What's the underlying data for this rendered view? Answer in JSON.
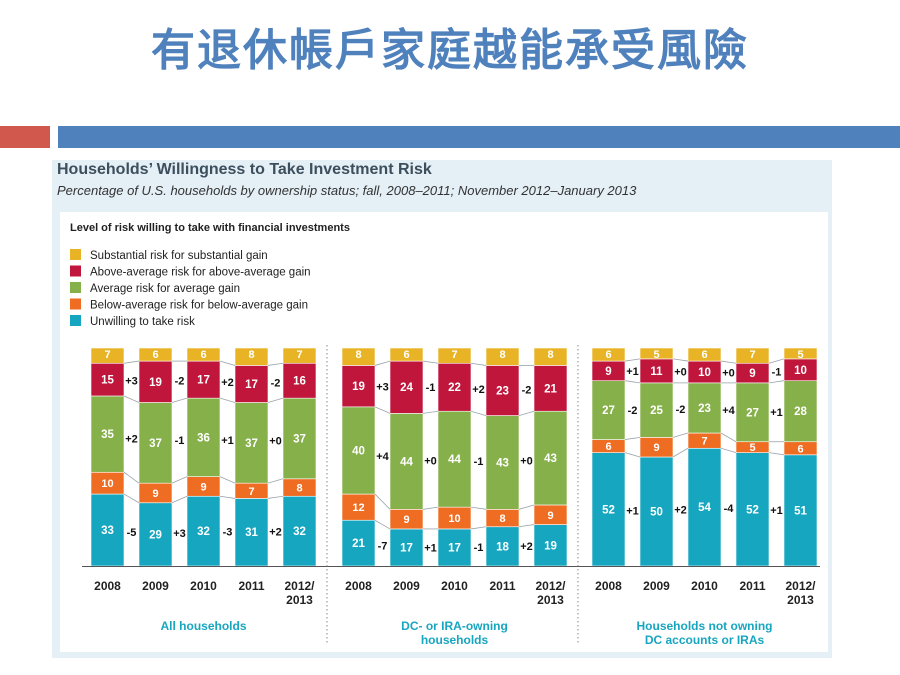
{
  "slide_title": "有退休帳戶家庭越能承受風險",
  "colors": {
    "slide_title": "#4f81bd",
    "accent_red": "#d0584d",
    "accent_blue": "#4f81bd",
    "substantial": "#e8b425",
    "above_average": "#c0163c",
    "average": "#86b04a",
    "below_average": "#ef6d22",
    "unwilling": "#17a6c0"
  },
  "chart_data": {
    "type": "bar",
    "stacked": true,
    "title": "Households’ Willingness to Take Investment Risk",
    "subtitle": "Percentage of U.S. households by ownership status; fall, 2008–2011; November 2012–January 2013",
    "legend_title": "Level of risk willing to take with financial investments",
    "legend": [
      "Substantial risk for substantial gain",
      "Above-average risk for above-average gain",
      "Average risk for average gain",
      "Below-average risk for below-average gain",
      "Unwilling to take risk"
    ],
    "categories": [
      "2008",
      "2009",
      "2010",
      "2011",
      "2012/\n2013"
    ],
    "groups": [
      {
        "name": "All households",
        "series": [
          {
            "values": [
              33,
              29,
              32,
              31,
              32
            ],
            "changes": [
              "-5",
              "+3",
              "-3",
              "+2"
            ]
          },
          {
            "values": [
              10,
              9,
              9,
              7,
              8
            ],
            "changes": []
          },
          {
            "values": [
              35,
              37,
              36,
              37,
              37
            ],
            "changes": [
              "+2",
              "-1",
              "+1",
              "+0"
            ]
          },
          {
            "values": [
              15,
              19,
              17,
              17,
              16
            ],
            "changes": [
              "+3",
              "-2",
              "+2",
              "-2"
            ]
          },
          {
            "values": [
              7,
              6,
              6,
              8,
              7
            ],
            "changes": []
          }
        ]
      },
      {
        "name": "DC- or IRA-owning\nhouseholds",
        "series": [
          {
            "values": [
              21,
              17,
              17,
              18,
              19
            ],
            "changes": [
              "-7",
              "+1",
              "-1",
              "+2"
            ]
          },
          {
            "values": [
              12,
              9,
              10,
              8,
              9
            ],
            "changes": []
          },
          {
            "values": [
              40,
              44,
              44,
              43,
              43
            ],
            "changes": [
              "+4",
              "+0",
              "-1",
              "+0"
            ]
          },
          {
            "values": [
              19,
              24,
              22,
              23,
              21
            ],
            "changes": [
              "+3",
              "-1",
              "+2",
              "-2"
            ]
          },
          {
            "values": [
              8,
              6,
              7,
              8,
              8
            ],
            "changes": []
          }
        ]
      },
      {
        "name": "Households not owning\nDC accounts or IRAs",
        "series": [
          {
            "values": [
              52,
              50,
              54,
              52,
              51
            ],
            "changes": [
              "+1",
              "+2",
              "-4",
              "+1"
            ]
          },
          {
            "values": [
              6,
              9,
              7,
              5,
              6
            ],
            "changes": []
          },
          {
            "values": [
              27,
              25,
              23,
              27,
              28
            ],
            "changes": [
              "-2",
              "-2",
              "+4",
              "+1"
            ]
          },
          {
            "values": [
              9,
              11,
              10,
              9,
              10
            ],
            "changes": [
              "+1",
              "+0",
              "+0",
              "-1"
            ]
          },
          {
            "values": [
              6,
              5,
              6,
              7,
              5
            ],
            "changes": []
          }
        ]
      }
    ]
  }
}
